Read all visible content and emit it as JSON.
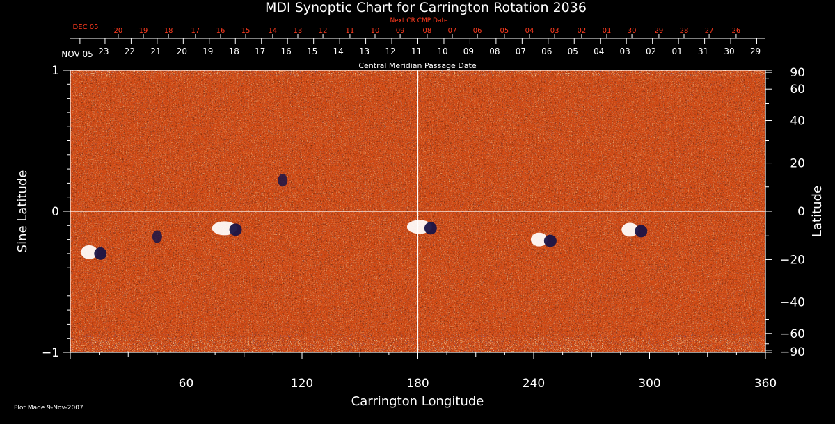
{
  "title": "MDI Synoptic Chart for Carrington Rotation 2036",
  "next_cr_label": "Next CR CMP Date",
  "cmp_label": "Central Meridian Passage Date",
  "x_axis_label": "Carrington Longitude",
  "left_axis_label": "Sine Latitude",
  "right_axis_label": "Latitude",
  "plot_made": "Plot Made  9-Nov-2007",
  "colors": {
    "background": "#000000",
    "axis": "#ffffff",
    "next_cr_text": "#ff3b1f",
    "map_base": "#d24a14",
    "positive_field": "#ffffff",
    "negative_field": "#1a1446"
  },
  "chart_data": {
    "type": "heatmap",
    "title": "MDI Synoptic Chart for Carrington Rotation 2036",
    "xlabel": "Carrington Longitude",
    "ylabel_left": "Sine Latitude",
    "ylabel_right": "Latitude",
    "xlim": [
      0,
      360
    ],
    "ylim": [
      -1,
      1
    ],
    "x_ticks": [
      60,
      120,
      180,
      240,
      300,
      360
    ],
    "x_tick_labels": [
      "60",
      "120",
      "180",
      "240",
      "300",
      "360"
    ],
    "left_ticks": [
      1,
      0,
      -1
    ],
    "left_tick_labels": [
      "1",
      "0",
      "−1"
    ],
    "right_ticks_degrees": [
      90,
      60,
      40,
      20,
      0,
      -20,
      -40,
      -60,
      -90
    ],
    "right_tick_labels": [
      "90",
      "60",
      "40",
      "20",
      "0",
      "−20",
      "−40",
      "−60",
      "−90"
    ],
    "crosshair": {
      "longitude": 180,
      "sine_latitude": 0
    },
    "cmp_dates": {
      "first_label": "NOV 05",
      "labels": [
        "23",
        "22",
        "21",
        "20",
        "19",
        "18",
        "17",
        "16",
        "15",
        "14",
        "13",
        "12",
        "11",
        "10",
        "09",
        "08",
        "07",
        "06",
        "05",
        "04",
        "03",
        "02",
        "01",
        "31",
        "30",
        "29"
      ],
      "longitudes": [
        18,
        31.5,
        45,
        58.5,
        72,
        85.5,
        99,
        112.5,
        126,
        139.5,
        153,
        166.5,
        180,
        193.5,
        207,
        220.5,
        234,
        247.5,
        261,
        274.5,
        288,
        301.5,
        315,
        328.5,
        342,
        355.5
      ]
    },
    "next_cr_dates": {
      "first_label": "DEC 05",
      "labels": [
        "20",
        "19",
        "18",
        "17",
        "16",
        "15",
        "14",
        "13",
        "12",
        "11",
        "10",
        "09",
        "08",
        "07",
        "06",
        "05",
        "04",
        "03",
        "02",
        "01",
        "30",
        "29",
        "28",
        "27",
        "26"
      ],
      "longitudes": [
        27,
        40,
        53,
        67,
        80,
        93,
        107,
        120,
        133,
        147,
        160,
        173,
        187,
        200,
        213,
        227,
        240,
        253,
        267,
        280,
        293,
        307,
        320,
        333,
        347
      ]
    },
    "active_regions": [
      {
        "longitude": 12,
        "sine_latitude": -0.29,
        "polarity": "mixed"
      },
      {
        "longitude": 82,
        "sine_latitude": -0.12,
        "polarity": "positive"
      },
      {
        "longitude": 183,
        "sine_latitude": -0.11,
        "polarity": "positive"
      },
      {
        "longitude": 245,
        "sine_latitude": -0.2,
        "polarity": "mixed"
      },
      {
        "longitude": 292,
        "sine_latitude": -0.13,
        "polarity": "mixed"
      },
      {
        "longitude": 45,
        "sine_latitude": -0.18,
        "polarity": "negative"
      },
      {
        "longitude": 110,
        "sine_latitude": 0.22,
        "polarity": "negative"
      }
    ]
  }
}
